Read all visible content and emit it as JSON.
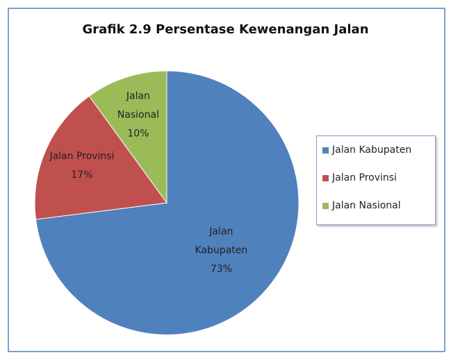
{
  "chart_data": {
    "type": "pie",
    "title": "Grafik 2.9 Persentase Kewenangan Jalan",
    "categories": [
      "Jalan Kabupaten",
      "Jalan Provinsi",
      "Jalan Nasional"
    ],
    "values": [
      73,
      17,
      10
    ],
    "value_labels": [
      "73%",
      "17%",
      "10%"
    ],
    "colors": [
      "#4f81bd",
      "#c0504d",
      "#9bbb59"
    ],
    "legend": "right"
  }
}
